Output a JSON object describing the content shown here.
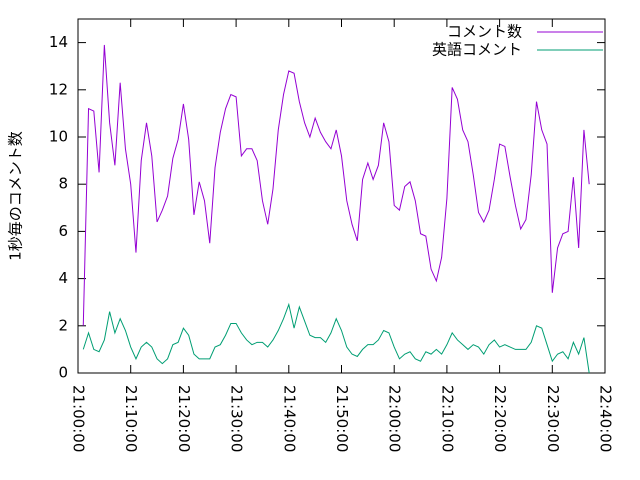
{
  "chart_data": {
    "type": "line",
    "y_label": "1秒毎のコメント数",
    "x": [
      "21:01:00",
      "21:02:00",
      "21:03:00",
      "21:04:00",
      "21:05:00",
      "21:06:00",
      "21:07:00",
      "21:08:00",
      "21:09:00",
      "21:10:00",
      "21:11:00",
      "21:12:00",
      "21:13:00",
      "21:14:00",
      "21:15:00",
      "21:16:00",
      "21:17:00",
      "21:18:00",
      "21:19:00",
      "21:20:00",
      "21:21:00",
      "21:22:00",
      "21:23:00",
      "21:24:00",
      "21:25:00",
      "21:26:00",
      "21:27:00",
      "21:28:00",
      "21:29:00",
      "21:30:00",
      "21:31:00",
      "21:32:00",
      "21:33:00",
      "21:34:00",
      "21:35:00",
      "21:36:00",
      "21:37:00",
      "21:38:00",
      "21:39:00",
      "21:40:00",
      "21:41:00",
      "21:42:00",
      "21:43:00",
      "21:44:00",
      "21:45:00",
      "21:46:00",
      "21:47:00",
      "21:48:00",
      "21:49:00",
      "21:50:00",
      "21:51:00",
      "21:52:00",
      "21:53:00",
      "21:54:00",
      "21:55:00",
      "21:56:00",
      "21:57:00",
      "21:58:00",
      "21:59:00",
      "22:00:00",
      "22:01:00",
      "22:02:00",
      "22:03:00",
      "22:04:00",
      "22:05:00",
      "22:06:00",
      "22:07:00",
      "22:08:00",
      "22:09:00",
      "22:10:00",
      "22:11:00",
      "22:12:00",
      "22:13:00",
      "22:14:00",
      "22:15:00",
      "22:16:00",
      "22:17:00",
      "22:18:00",
      "22:19:00",
      "22:20:00",
      "22:21:00",
      "22:22:00",
      "22:23:00",
      "22:24:00",
      "22:25:00",
      "22:26:00",
      "22:27:00",
      "22:28:00",
      "22:29:00",
      "22:30:00",
      "22:31:00",
      "22:32:00",
      "22:33:00",
      "22:34:00",
      "22:35:00",
      "22:36:00",
      "22:37:00"
    ],
    "series": [
      {
        "name": "コメント数",
        "color": "#9400d3",
        "values": [
          2.0,
          11.2,
          11.1,
          8.5,
          13.9,
          10.6,
          8.8,
          12.3,
          9.5,
          8.0,
          5.1,
          9.0,
          10.6,
          9.2,
          6.4,
          6.9,
          7.5,
          9.1,
          9.9,
          11.4,
          9.9,
          6.7,
          8.1,
          7.3,
          5.5,
          8.7,
          10.2,
          11.2,
          11.8,
          11.7,
          9.2,
          9.5,
          9.5,
          9.0,
          7.3,
          6.3,
          7.8,
          10.3,
          11.8,
          12.8,
          12.7,
          11.5,
          10.6,
          10.0,
          10.8,
          10.2,
          9.8,
          9.5,
          10.3,
          9.2,
          7.3,
          6.3,
          5.6,
          8.2,
          8.9,
          8.2,
          8.8,
          10.6,
          9.8,
          7.1,
          6.9,
          7.9,
          8.1,
          7.3,
          5.9,
          5.8,
          4.4,
          3.9,
          4.9,
          7.4,
          12.1,
          11.6,
          10.3,
          9.8,
          8.4,
          6.8,
          6.4,
          6.9,
          8.2,
          9.7,
          9.6,
          8.3,
          7.1,
          6.1,
          6.5,
          8.4,
          11.5,
          10.3,
          9.7,
          3.4,
          5.3,
          5.9,
          6.0,
          8.3,
          5.3,
          10.3,
          8.0
        ]
      },
      {
        "name": "英語コメント",
        "color": "#009e73",
        "values": [
          1.0,
          1.7,
          1.0,
          0.9,
          1.4,
          2.6,
          1.7,
          2.3,
          1.8,
          1.1,
          0.6,
          1.1,
          1.3,
          1.1,
          0.6,
          0.4,
          0.6,
          1.2,
          1.3,
          1.9,
          1.6,
          0.8,
          0.6,
          0.6,
          0.6,
          1.1,
          1.2,
          1.6,
          2.1,
          2.1,
          1.7,
          1.4,
          1.2,
          1.3,
          1.3,
          1.1,
          1.4,
          1.8,
          2.3,
          2.9,
          1.9,
          2.8,
          2.2,
          1.6,
          1.5,
          1.5,
          1.3,
          1.7,
          2.3,
          1.8,
          1.1,
          0.8,
          0.7,
          1.0,
          1.2,
          1.2,
          1.4,
          1.8,
          1.7,
          1.1,
          0.6,
          0.8,
          0.9,
          0.6,
          0.5,
          0.9,
          0.8,
          1.0,
          0.8,
          1.2,
          1.7,
          1.4,
          1.2,
          1.0,
          1.2,
          1.1,
          0.8,
          1.2,
          1.4,
          1.1,
          1.2,
          1.1,
          1.0,
          1.0,
          1.0,
          1.3,
          2.0,
          1.9,
          1.2,
          0.5,
          0.8,
          0.9,
          0.6,
          1.3,
          0.8,
          1.5,
          0.0
        ]
      }
    ],
    "xlim": [
      "21:00:00",
      "22:40:00"
    ],
    "xticks": [
      "21:00:00",
      "21:10:00",
      "21:20:00",
      "21:30:00",
      "21:40:00",
      "21:50:00",
      "22:00:00",
      "22:10:00",
      "22:20:00",
      "22:30:00",
      "22:40:00"
    ],
    "ylim": [
      0,
      15
    ],
    "yticks": [
      0,
      2,
      4,
      6,
      8,
      10,
      12,
      14
    ],
    "grid": false,
    "legend": "top-right"
  }
}
